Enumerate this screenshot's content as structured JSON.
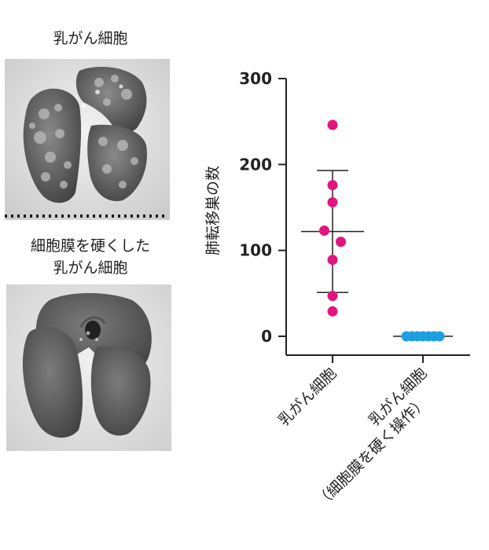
{
  "panels": {
    "top_label": "乳がん細胞",
    "bottom_label_line1": "細胞膜を硬くした",
    "bottom_label_line2": "乳がん細胞"
  },
  "chart_data": {
    "type": "scatter",
    "ylabel": "肺転移巣の数",
    "ylim": [
      0,
      300
    ],
    "yticks": [
      0,
      100,
      200,
      300
    ],
    "categories": [
      "乳がん細胞",
      "乳がん細胞（細胞膜を硬く操作）"
    ],
    "category_lines": [
      [
        "乳がん細胞"
      ],
      [
        "乳がん細胞",
        "（細胞膜を硬く操作）"
      ]
    ],
    "series": [
      {
        "category": "乳がん細胞",
        "color": "#e0157f",
        "points": [
          {
            "x": 0,
            "y": 246
          },
          {
            "x": 0,
            "y": 176
          },
          {
            "x": 0,
            "y": 156
          },
          {
            "x": -0.15,
            "y": 123
          },
          {
            "x": 0.15,
            "y": 110
          },
          {
            "x": 0,
            "y": 89
          },
          {
            "x": 0,
            "y": 47
          },
          {
            "x": 0,
            "y": 29
          }
        ],
        "mean": 122,
        "sd_low": 51,
        "sd_high": 193
      },
      {
        "category": "乳がん細胞（細胞膜を硬く操作）",
        "color": "#1e9fe0",
        "points": [
          {
            "x": -0.3,
            "y": 0
          },
          {
            "x": -0.2,
            "y": 0
          },
          {
            "x": -0.1,
            "y": 0
          },
          {
            "x": 0,
            "y": 0
          },
          {
            "x": 0.1,
            "y": 0
          },
          {
            "x": 0.2,
            "y": 0
          },
          {
            "x": 0.3,
            "y": 0
          }
        ],
        "mean": 0,
        "sd_low": 0,
        "sd_high": 0
      }
    ]
  }
}
